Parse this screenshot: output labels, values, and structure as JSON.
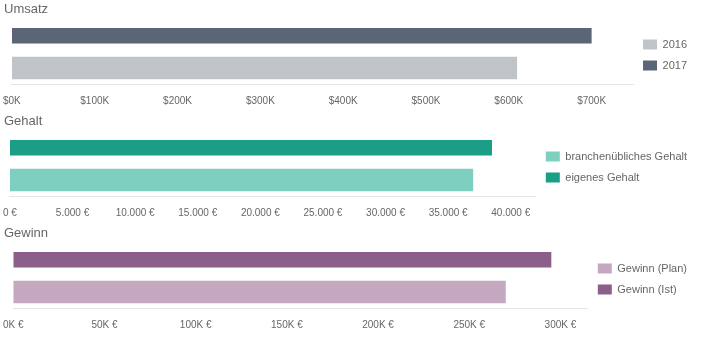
{
  "chart_data": [
    {
      "type": "bar",
      "orientation": "horizontal",
      "title": "Umsatz",
      "series": [
        {
          "name": "2016",
          "color": "#c0c4c8",
          "values": [
            610000
          ]
        },
        {
          "name": "2017",
          "color": "#5a6575",
          "values": [
            700000
          ]
        }
      ],
      "xlim": [
        0,
        750000
      ],
      "xticks": [
        {
          "value": 0,
          "label": "$0K"
        },
        {
          "value": 100000,
          "label": "$100K"
        },
        {
          "value": 200000,
          "label": "$200K"
        },
        {
          "value": 300000,
          "label": "$300K"
        },
        {
          "value": 400000,
          "label": "$400K"
        },
        {
          "value": 500000,
          "label": "$500K"
        },
        {
          "value": 600000,
          "label": "$600K"
        },
        {
          "value": 700000,
          "label": "$700K"
        }
      ],
      "grid": false,
      "legend": "right",
      "tick_labels": "x"
    },
    {
      "type": "bar",
      "orientation": "horizontal",
      "title": "Gehalt",
      "series": [
        {
          "name": "branchenübliches Gehalt",
          "color": "#7ecfc0",
          "values": [
            37000
          ]
        },
        {
          "name": "eigenes Gehalt",
          "color": "#1a9e85",
          "values": [
            38500
          ]
        }
      ],
      "xlim": [
        0,
        42000
      ],
      "xticks": [
        {
          "value": 0,
          "label": "0 €"
        },
        {
          "value": 5000,
          "label": "5.000 €"
        },
        {
          "value": 10000,
          "label": "10.000 €"
        },
        {
          "value": 15000,
          "label": "15.000 €"
        },
        {
          "value": 20000,
          "label": "20.000 €"
        },
        {
          "value": 25000,
          "label": "25.000 €"
        },
        {
          "value": 30000,
          "label": "30.000 €"
        },
        {
          "value": 35000,
          "label": "35.000 €"
        },
        {
          "value": 40000,
          "label": "40.000 €"
        }
      ],
      "grid": false,
      "legend": "right",
      "tick_labels": "x"
    },
    {
      "type": "bar",
      "orientation": "horizontal",
      "title": "Gewinn",
      "series": [
        {
          "name": "Gewinn (Plan)",
          "color": "#c4a8bf",
          "values": [
            270000
          ]
        },
        {
          "name": "Gewinn (Ist)",
          "color": "#8b5f8a",
          "values": [
            295000
          ]
        }
      ],
      "xlim": [
        0,
        315000
      ],
      "xticks": [
        {
          "value": 0,
          "label": "0K €"
        },
        {
          "value": 50000,
          "label": "50K €"
        },
        {
          "value": 100000,
          "label": "100K €"
        },
        {
          "value": 150000,
          "label": "150K €"
        },
        {
          "value": 200000,
          "label": "200K €"
        },
        {
          "value": 250000,
          "label": "250K €"
        },
        {
          "value": 300000,
          "label": "300K €"
        }
      ],
      "grid": false,
      "legend": "right",
      "tick_labels": "x"
    }
  ]
}
